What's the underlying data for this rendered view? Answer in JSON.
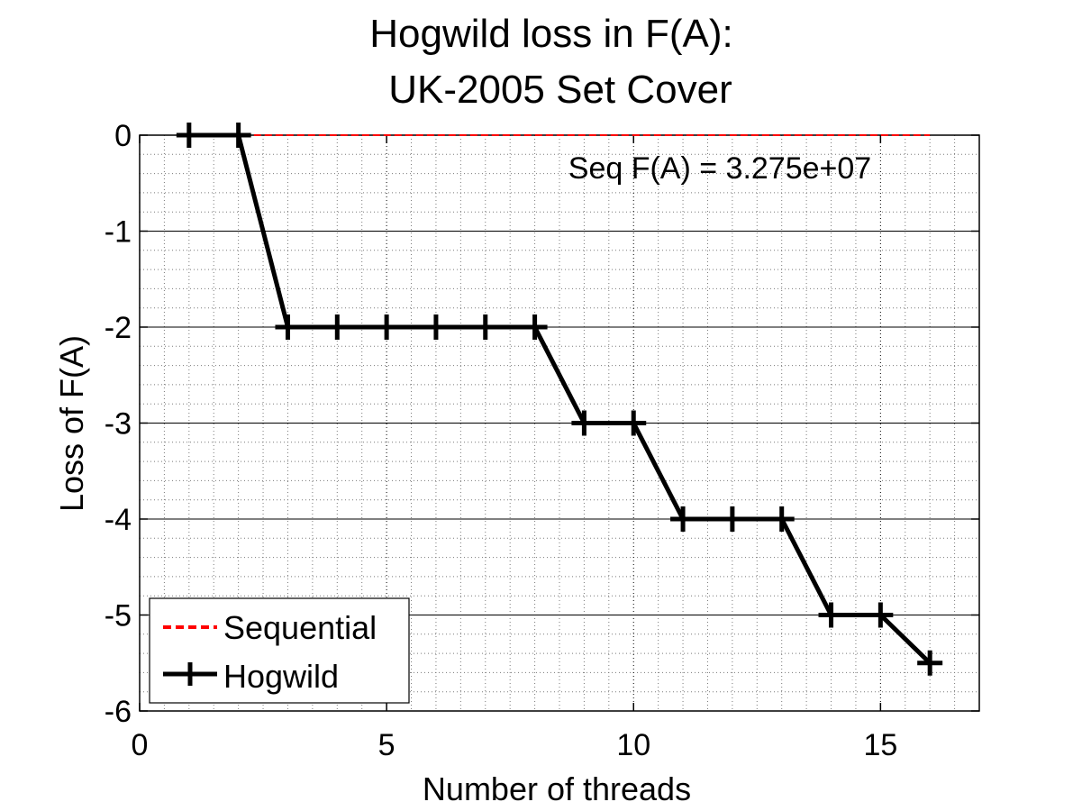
{
  "chart_data": {
    "type": "line",
    "title": [
      "Hogwild loss in F(A):",
      "UK-2005 Set Cover"
    ],
    "xlabel": "Number of threads",
    "ylabel": "Loss of F(A)",
    "xlim": [
      0,
      17
    ],
    "ylim": [
      -6,
      0
    ],
    "xticks": [
      0,
      5,
      10,
      15
    ],
    "yticks": [
      0,
      -1,
      -2,
      -3,
      -4,
      -5,
      -6
    ],
    "xtick_labels": [
      "0",
      "5",
      "10",
      "15"
    ],
    "ytick_labels": [
      "0",
      "-1",
      "-2",
      "-3",
      "-4",
      "-5",
      "-6"
    ],
    "grid": "major and minor",
    "legend_position": "bottom-left",
    "annotation": "Seq F(A) = 3.275e+07",
    "series": [
      {
        "name": "Sequential",
        "color": "#ff0000",
        "style": "dashed",
        "x": [
          1,
          16
        ],
        "y": [
          0,
          0
        ]
      },
      {
        "name": "Hogwild",
        "color": "#000000",
        "style": "solid",
        "marker": "plus",
        "x": [
          1,
          2,
          3,
          4,
          5,
          6,
          7,
          8,
          9,
          10,
          11,
          12,
          13,
          14,
          15,
          16
        ],
        "y": [
          0,
          0,
          -2,
          -2,
          -2,
          -2,
          -2,
          -2,
          -3,
          -3,
          -4,
          -4,
          -4,
          -5,
          -5,
          -5.5
        ]
      }
    ]
  }
}
